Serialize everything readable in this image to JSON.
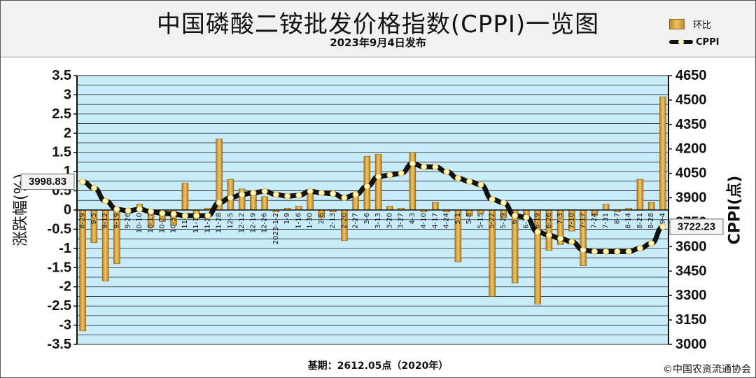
{
  "header": {
    "title": "中国磷酸二铵批发价格指数(CPPI)一览图",
    "subtitle": "2023年9月4日发布"
  },
  "legend": {
    "bar_label": "环比",
    "line_label": "CPPI"
  },
  "footer": {
    "base": "基期：2612.05点（2020年）",
    "copyright": "©中国农资流通协会"
  },
  "colors": {
    "plot_bg": "#c8ecfa",
    "bar": "#d9a441",
    "line": "#111111",
    "marker": "#fff6c8"
  },
  "chart_data": {
    "type": "bar",
    "xlabel": "",
    "ylabel": "涨跌幅(%)",
    "y2label": "CPPI(点)",
    "ylim": [
      -3.5,
      3.5
    ],
    "y2lim": [
      3000,
      4650
    ],
    "left_ticks": [
      "3.5",
      "3",
      "2.5",
      "2",
      "1.5",
      "1",
      "0.5",
      "0",
      "-0.5",
      "-1",
      "-1.5",
      "-2",
      "-2.5",
      "-3",
      "-3.5"
    ],
    "right_ticks": [
      "4650",
      "4500",
      "4350",
      "4200",
      "4050",
      "3900",
      "3750",
      "3600",
      "3450",
      "3300",
      "3150",
      "3000"
    ],
    "categories": [
      "8-29",
      "9-5",
      "9-12",
      "9-19",
      "9-26",
      "10-10",
      "10-17",
      "10-24",
      "10-31",
      "11-7",
      "11-14",
      "11-21",
      "11-28",
      "12-5",
      "12-12",
      "12-19",
      "12-26",
      "2023-1-2",
      "1-9",
      "1-16",
      "1-30",
      "2-6",
      "2-13",
      "2-20",
      "2-27",
      "3-6",
      "3-13",
      "3-20",
      "3-27",
      "4-3",
      "4-10",
      "4-17",
      "4-24",
      "5-1",
      "5-8",
      "5-15",
      "5-22",
      "5-29",
      "6-5",
      "6-12",
      "6-19",
      "6-26",
      "7-3",
      "7-10",
      "7-17",
      "7-24",
      "7-31",
      "8-7",
      "8-14",
      "8-21",
      "8-28",
      "9-4"
    ],
    "series": [
      {
        "name": "环比",
        "type": "bar",
        "values": [
          -3.15,
          -0.85,
          -1.85,
          -1.4,
          -0.1,
          0.15,
          -0.45,
          -0.3,
          -0.4,
          0.7,
          -0.25,
          0.05,
          1.85,
          0.8,
          0.55,
          0.4,
          0.35,
          -0.05,
          0.05,
          0.1,
          0.45,
          -0.2,
          -0.05,
          -0.8,
          0.4,
          1.4,
          1.45,
          0.1,
          0.05,
          1.5,
          -0.05,
          0.2,
          -0.05,
          -1.35,
          -0.15,
          -0.1,
          -2.25,
          -0.2,
          -1.9,
          -0.2,
          -2.45,
          -1.05,
          -0.9,
          -0.55,
          -1.45,
          -0.15,
          0.15,
          -0.05,
          0.05,
          0.8,
          0.2,
          2.95
        ]
      },
      {
        "name": "CPPI",
        "type": "line",
        "values": [
          3998.83,
          3960,
          3880,
          3830,
          3820,
          3830,
          3815,
          3805,
          3800,
          3790,
          3790,
          3790,
          3870,
          3900,
          3920,
          3930,
          3940,
          3920,
          3910,
          3915,
          3940,
          3930,
          3925,
          3900,
          3920,
          3970,
          4030,
          4040,
          4050,
          4110,
          4090,
          4090,
          4060,
          4020,
          4000,
          3980,
          3890,
          3870,
          3790,
          3780,
          3690,
          3670,
          3650,
          3630,
          3580,
          3570,
          3570,
          3570,
          3570,
          3590,
          3620,
          3722.23
        ]
      }
    ],
    "annotations": [
      {
        "label": "3998.83",
        "series": "CPPI",
        "point": "first"
      },
      {
        "label": "3722.23",
        "series": "CPPI",
        "point": "last"
      }
    ],
    "grid": true,
    "legend_position": "top-right"
  }
}
